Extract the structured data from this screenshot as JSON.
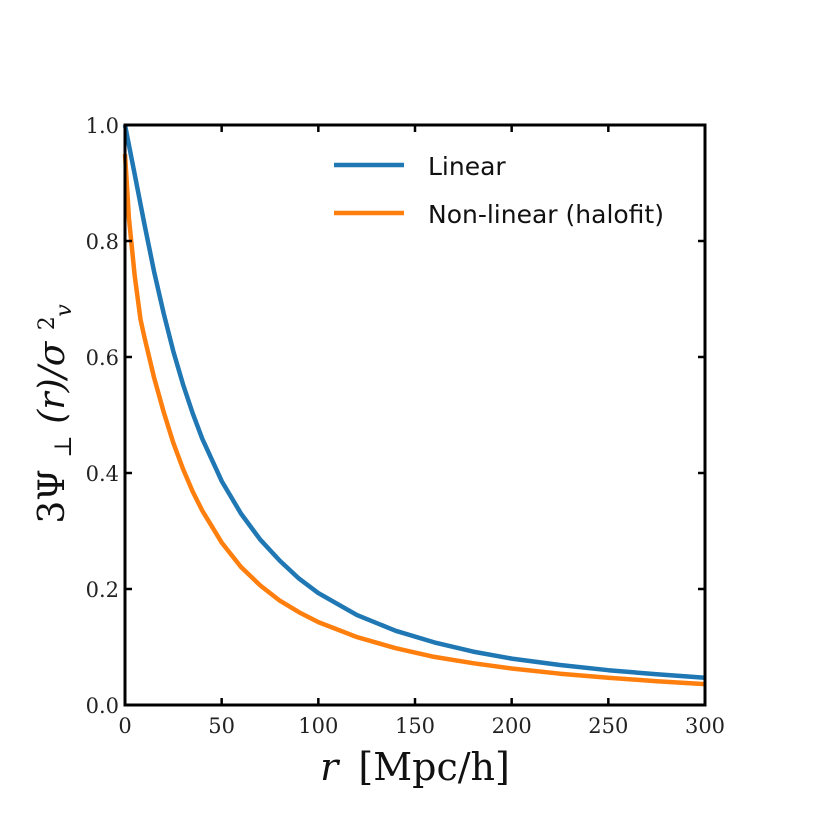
{
  "chart_data": {
    "type": "line",
    "xlabel": {
      "var": "r",
      "unit": "[Mpc/h]"
    },
    "ylabel": {
      "num": "3Ψ",
      "sub": "⊥",
      "arg": "(r)/σ",
      "sup": "2",
      "sub2": "v"
    },
    "xlim": [
      0,
      300
    ],
    "ylim": [
      0,
      1.0
    ],
    "xticks": [
      0,
      50,
      100,
      150,
      200,
      250,
      300
    ],
    "xtick_labels": [
      "0",
      "50",
      "100",
      "150",
      "200",
      "250",
      "300"
    ],
    "yticks": [
      0.0,
      0.2,
      0.4,
      0.6,
      0.8,
      1.0
    ],
    "ytick_labels": [
      "0.0",
      "0.2",
      "0.4",
      "0.6",
      "0.8",
      "1.0"
    ],
    "grid": false,
    "legend_position": "top-right",
    "series": [
      {
        "name": "Linear",
        "color": "#1f77b4",
        "x": [
          0,
          5,
          10,
          15,
          20,
          25,
          30,
          35,
          40,
          50,
          60,
          70,
          80,
          90,
          100,
          120,
          140,
          160,
          180,
          200,
          225,
          250,
          275,
          300
        ],
        "y": [
          1.0,
          0.915,
          0.83,
          0.748,
          0.675,
          0.61,
          0.553,
          0.503,
          0.459,
          0.386,
          0.33,
          0.285,
          0.249,
          0.218,
          0.193,
          0.155,
          0.128,
          0.108,
          0.092,
          0.08,
          0.069,
          0.06,
          0.053,
          0.047
        ]
      },
      {
        "name": "Non-linear (halofit)",
        "color": "#ff7f0e",
        "x": [
          0,
          2,
          5,
          8,
          10,
          15,
          20,
          25,
          30,
          35,
          40,
          50,
          60,
          70,
          80,
          90,
          100,
          120,
          140,
          160,
          180,
          200,
          225,
          250,
          275,
          300
        ],
        "y": [
          0.95,
          0.84,
          0.74,
          0.665,
          0.635,
          0.565,
          0.505,
          0.452,
          0.407,
          0.368,
          0.335,
          0.28,
          0.238,
          0.206,
          0.18,
          0.16,
          0.143,
          0.117,
          0.098,
          0.083,
          0.072,
          0.063,
          0.054,
          0.047,
          0.041,
          0.036
        ]
      }
    ]
  }
}
